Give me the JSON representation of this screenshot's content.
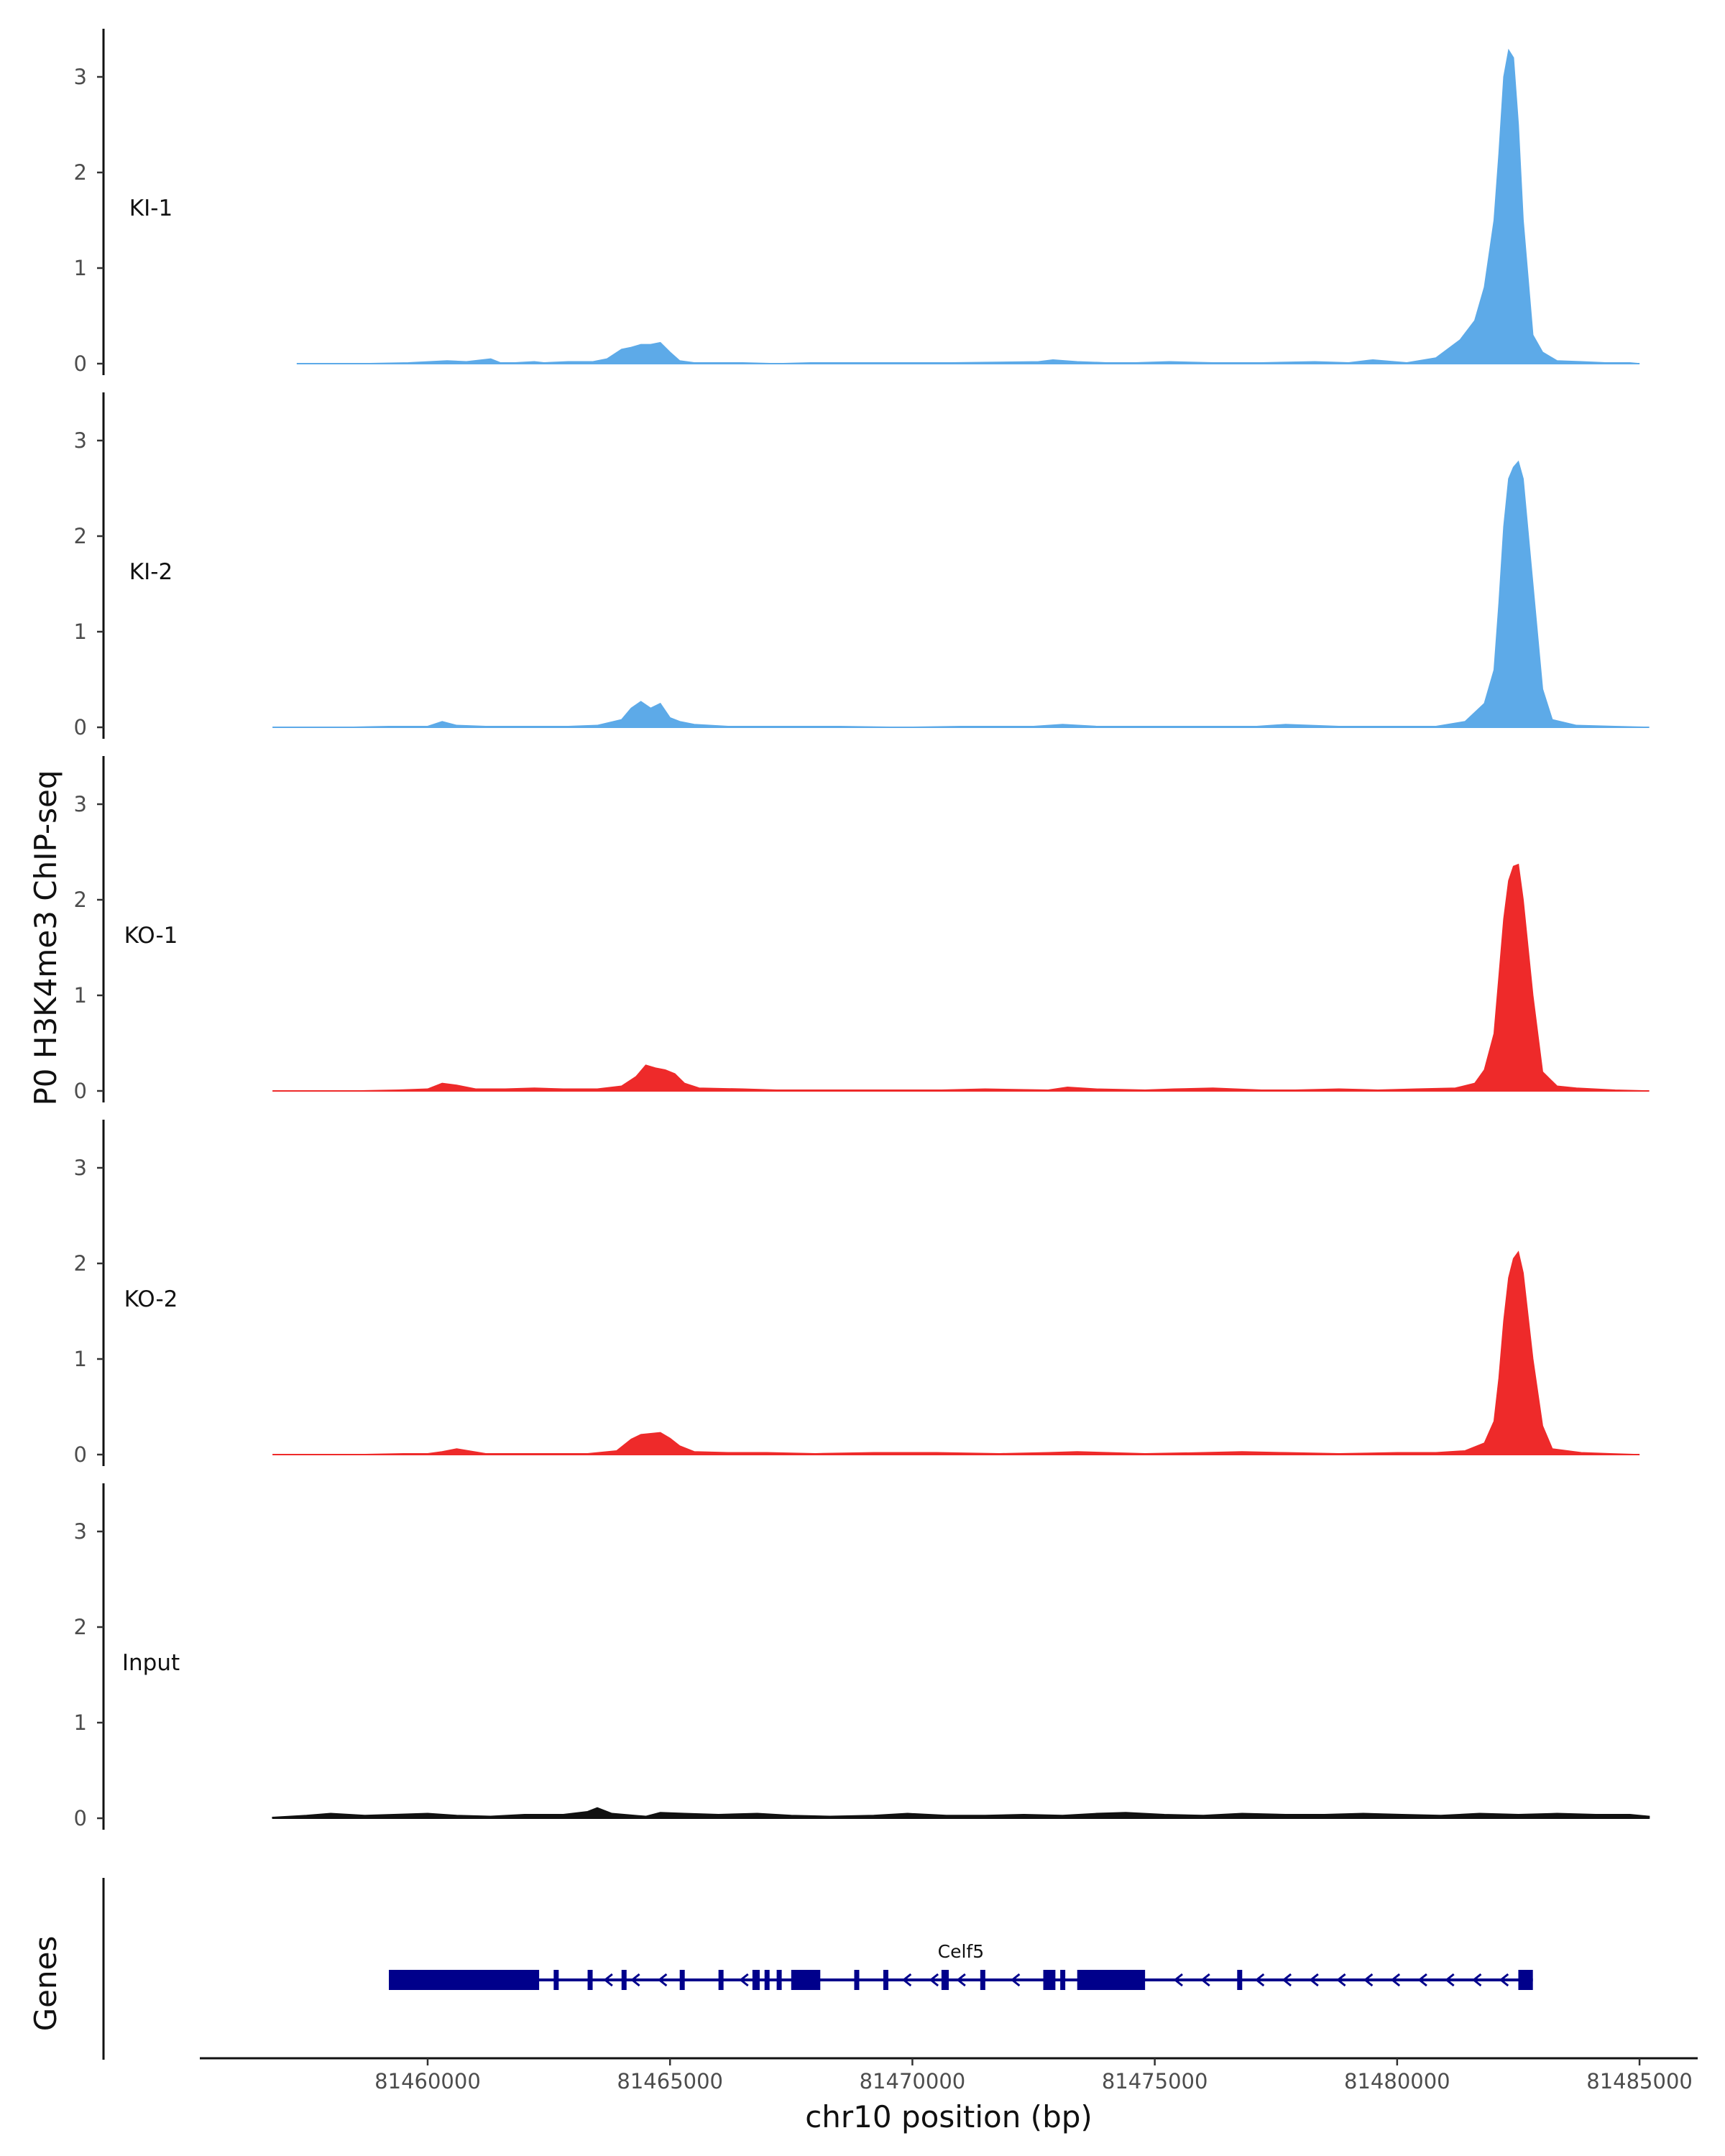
{
  "chart_data": {
    "type": "area",
    "ylabel": "P0 H3K4me3 ChIP-seq",
    "xlabel": "chr10 position (bp)",
    "xlim": [
      81455300,
      81486200
    ],
    "ylim": [
      0,
      3.4
    ],
    "yticks": [
      0,
      1,
      2,
      3
    ],
    "xticks": [
      81460000,
      81465000,
      81470000,
      81475000,
      81480000,
      81485000
    ],
    "xtick_labels": [
      "81460000",
      "81465000",
      "81470000",
      "81475000",
      "81480000",
      "81485000"
    ],
    "tracks": [
      {
        "name": "KI-1",
        "label": "KI-1",
        "color": "#5daae8",
        "x": [
          81457300,
          81458000,
          81458600,
          81459600,
          81460400,
          81460800,
          81461300,
          81461500,
          81461800,
          81462200,
          81462400,
          81462900,
          81463400,
          81463700,
          81464000,
          81464200,
          81464400,
          81464600,
          81464800,
          81465000,
          81465200,
          81465500,
          81466500,
          81467200,
          81467900,
          81468500,
          81469300,
          81470000,
          81470800,
          81472600,
          81472900,
          81473400,
          81474000,
          81474600,
          81475300,
          81476200,
          81477200,
          81478300,
          81479000,
          81479500,
          81480200,
          81480800,
          81481300,
          81481600,
          81481800,
          81482000,
          81482100,
          81482200,
          81482300,
          81482400,
          81482500,
          81482600,
          81482800,
          81483000,
          81483300,
          81483800,
          81484300,
          81484800,
          81485000
        ],
        "y": [
          0,
          0,
          0,
          0.01,
          0.03,
          0.02,
          0.05,
          0.01,
          0.01,
          0.02,
          0.01,
          0.02,
          0.02,
          0.05,
          0.15,
          0.17,
          0.2,
          0.2,
          0.22,
          0.12,
          0.03,
          0.01,
          0.01,
          0,
          0.01,
          0.01,
          0.01,
          0.01,
          0.01,
          0.02,
          0.04,
          0.02,
          0.01,
          0.01,
          0.02,
          0.01,
          0.01,
          0.02,
          0.01,
          0.04,
          0.01,
          0.06,
          0.25,
          0.45,
          0.8,
          1.5,
          2.2,
          3.0,
          3.28,
          3.2,
          2.5,
          1.5,
          0.3,
          0.12,
          0.03,
          0.02,
          0.01,
          0.01,
          0
        ]
      },
      {
        "name": "KI-2",
        "label": "KI-2",
        "color": "#5daae8",
        "x": [
          81456800,
          81457500,
          81458300,
          81459200,
          81460000,
          81460300,
          81460600,
          81461200,
          81462000,
          81462900,
          81463500,
          81464000,
          81464200,
          81464400,
          81464600,
          81464800,
          81465000,
          81465200,
          81465500,
          81466200,
          81467200,
          81468500,
          81469800,
          81471000,
          81472500,
          81473100,
          81473800,
          81474900,
          81476000,
          81477100,
          81477700,
          81478800,
          81480000,
          81480800,
          81481400,
          81481800,
          81482000,
          81482100,
          81482200,
          81482300,
          81482400,
          81482500,
          81482600,
          81482800,
          81483000,
          81483200,
          81483700,
          81484500,
          81485200
        ],
        "y": [
          0,
          0,
          0,
          0.01,
          0.01,
          0.06,
          0.02,
          0.01,
          0.01,
          0.01,
          0.02,
          0.08,
          0.2,
          0.27,
          0.2,
          0.25,
          0.1,
          0.06,
          0.03,
          0.01,
          0.01,
          0.01,
          0,
          0.01,
          0.01,
          0.03,
          0.01,
          0.01,
          0.01,
          0.01,
          0.03,
          0.01,
          0.01,
          0.01,
          0.06,
          0.25,
          0.6,
          1.3,
          2.1,
          2.6,
          2.72,
          2.78,
          2.6,
          1.5,
          0.4,
          0.08,
          0.02,
          0.01,
          0
        ]
      },
      {
        "name": "KO-1",
        "label": "KO-1",
        "color": "#ee2a2a",
        "x": [
          81456800,
          81457500,
          81458400,
          81459400,
          81460000,
          81460300,
          81460600,
          81461000,
          81461600,
          81462200,
          81462800,
          81463500,
          81464000,
          81464300,
          81464500,
          81464700,
          81464900,
          81465100,
          81465300,
          81465600,
          81466500,
          81467200,
          81468200,
          81469000,
          81470600,
          81471500,
          81472800,
          81473200,
          81473800,
          81474800,
          81475400,
          81476200,
          81477200,
          81477900,
          81478800,
          81479600,
          81480400,
          81481200,
          81481600,
          81481800,
          81482000,
          81482100,
          81482200,
          81482300,
          81482400,
          81482500,
          81482600,
          81482800,
          81483000,
          81483300,
          81483700,
          81484500,
          81485200
        ],
        "y": [
          0,
          0,
          0,
          0.01,
          0.02,
          0.08,
          0.06,
          0.02,
          0.02,
          0.03,
          0.02,
          0.02,
          0.05,
          0.15,
          0.27,
          0.24,
          0.22,
          0.18,
          0.08,
          0.03,
          0.02,
          0.01,
          0.01,
          0.01,
          0.01,
          0.02,
          0.01,
          0.04,
          0.02,
          0.01,
          0.02,
          0.03,
          0.01,
          0.01,
          0.02,
          0.01,
          0.02,
          0.03,
          0.08,
          0.22,
          0.6,
          1.2,
          1.8,
          2.2,
          2.35,
          2.37,
          2.0,
          1.0,
          0.2,
          0.05,
          0.03,
          0.01,
          0
        ]
      },
      {
        "name": "KO-2",
        "label": "KO-2",
        "color": "#ee2a2a",
        "x": [
          81456800,
          81457600,
          81458500,
          81459500,
          81460000,
          81460300,
          81460600,
          81461200,
          81462200,
          81463300,
          81463900,
          81464200,
          81464400,
          81464600,
          81464800,
          81465000,
          81465200,
          81465500,
          81466200,
          81467000,
          81468000,
          81469200,
          81470500,
          81471800,
          81472800,
          81473400,
          81474800,
          81476000,
          81476800,
          81477700,
          81478800,
          81480000,
          81480800,
          81481400,
          81481800,
          81482000,
          81482100,
          81482200,
          81482300,
          81482400,
          81482500,
          81482600,
          81482800,
          81483000,
          81483200,
          81483800,
          81484400,
          81485000
        ],
        "y": [
          0,
          0,
          0,
          0.01,
          0.01,
          0.03,
          0.06,
          0.01,
          0.01,
          0.01,
          0.04,
          0.16,
          0.21,
          0.22,
          0.23,
          0.17,
          0.09,
          0.03,
          0.02,
          0.02,
          0.01,
          0.02,
          0.02,
          0.01,
          0.02,
          0.03,
          0.01,
          0.02,
          0.03,
          0.02,
          0.01,
          0.02,
          0.02,
          0.04,
          0.12,
          0.35,
          0.8,
          1.4,
          1.85,
          2.05,
          2.12,
          1.9,
          1.0,
          0.3,
          0.06,
          0.02,
          0.01,
          0
        ]
      },
      {
        "name": "Input",
        "label": "Input",
        "color": "#111111",
        "x": [
          81456800,
          81457500,
          81458000,
          81458700,
          81459300,
          81460000,
          81460600,
          81461300,
          81462000,
          81462800,
          81463300,
          81463500,
          81463800,
          81464500,
          81464800,
          81465300,
          81466000,
          81466800,
          81467500,
          81468300,
          81469200,
          81469900,
          81470700,
          81471500,
          81472300,
          81473100,
          81473800,
          81474400,
          81475200,
          81476000,
          81476800,
          81477700,
          81478500,
          81479300,
          81480100,
          81480900,
          81481700,
          81482500,
          81483300,
          81484100,
          81484800,
          81485200
        ],
        "y": [
          0.01,
          0.03,
          0.05,
          0.03,
          0.04,
          0.05,
          0.03,
          0.02,
          0.04,
          0.04,
          0.07,
          0.11,
          0.05,
          0.02,
          0.06,
          0.05,
          0.04,
          0.05,
          0.03,
          0.02,
          0.03,
          0.05,
          0.03,
          0.03,
          0.04,
          0.03,
          0.05,
          0.06,
          0.04,
          0.03,
          0.05,
          0.04,
          0.04,
          0.05,
          0.04,
          0.03,
          0.05,
          0.04,
          0.05,
          0.04,
          0.04,
          0.02
        ]
      }
    ],
    "gene_track": {
      "title": "Genes",
      "gene": "Celf5",
      "color": "#00008b",
      "strand": "-",
      "start": 81459200,
      "end": 81482800,
      "exons": [
        [
          81459200,
          81462300
        ],
        [
          81462600,
          81462700
        ],
        [
          81463300,
          81463350
        ],
        [
          81464000,
          81464080
        ],
        [
          81465200,
          81465260
        ],
        [
          81466000,
          81466060
        ],
        [
          81466700,
          81466850
        ],
        [
          81466950,
          81467050
        ],
        [
          81467200,
          81467300
        ],
        [
          81467500,
          81468100
        ],
        [
          81468800,
          81468880
        ],
        [
          81469400,
          81469470
        ],
        [
          81470600,
          81470750
        ],
        [
          81471400,
          81471500
        ],
        [
          81472700,
          81472950
        ],
        [
          81473050,
          81473120
        ],
        [
          81473400,
          81474800
        ],
        [
          81476700,
          81476800
        ],
        [
          81482500,
          81482800
        ]
      ]
    }
  }
}
